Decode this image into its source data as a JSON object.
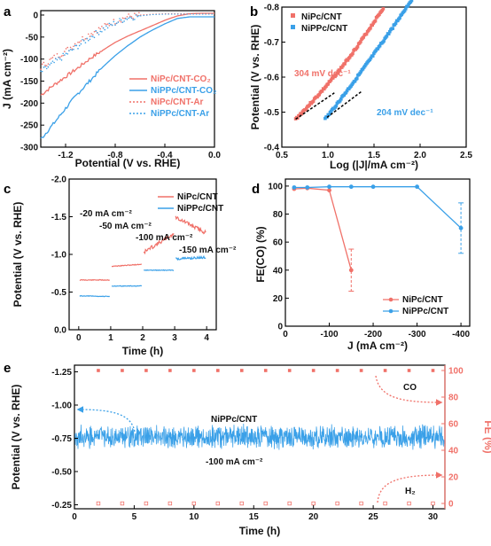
{
  "colors": {
    "red": "#f07169",
    "blue": "#3aa0e8",
    "dark": "#000000"
  },
  "panels": [
    {
      "id": "a",
      "type": "line",
      "label": "a",
      "xlabel": "Potential  (V vs. RHE)",
      "ylabel": "J (mA cm⁻²)",
      "xlim": [
        -1.4,
        0.0
      ],
      "ylim": [
        -300,
        10
      ],
      "xticks": [
        -1.2,
        -0.8,
        -0.4,
        0.0
      ],
      "xtick_labels": [
        "-1.2",
        "-0.8",
        "-0.4",
        "0.0"
      ],
      "yticks": [
        0,
        -50,
        -100,
        -150,
        -200,
        -250,
        -300
      ],
      "ytick_labels": [
        "0",
        "-50",
        "-100",
        "-150",
        "-200",
        "-250",
        "-300"
      ],
      "series": [
        {
          "name": "NiPc/CNT-CO₂",
          "style": "solid",
          "color": "red",
          "x": [
            -1.4,
            -1.3,
            -1.2,
            -1.1,
            -1.0,
            -0.9,
            -0.8,
            -0.7,
            -0.6,
            -0.5,
            -0.4,
            -0.3,
            -0.2,
            -0.1,
            0.0
          ],
          "y": [
            -182,
            -160,
            -140,
            -120,
            -98,
            -80,
            -62,
            -48,
            -36,
            -24,
            -12,
            -2,
            3,
            4,
            4
          ]
        },
        {
          "name": "NiPPc/CNT-CO₂",
          "style": "solid",
          "color": "blue",
          "x": [
            -1.4,
            -1.3,
            -1.2,
            -1.1,
            -1.0,
            -0.9,
            -0.8,
            -0.7,
            -0.6,
            -0.5,
            -0.4,
            -0.3,
            -0.2,
            -0.1,
            0.0
          ],
          "y": [
            -282,
            -248,
            -212,
            -178,
            -148,
            -118,
            -92,
            -70,
            -50,
            -34,
            -20,
            -8,
            -4,
            -4,
            -4
          ]
        },
        {
          "name": "NiPc/CNT-Ar",
          "style": "dotted",
          "color": "red",
          "x": [
            -1.4,
            -1.3,
            -1.2,
            -1.1,
            -1.0,
            -0.9,
            -0.8,
            -0.7,
            -0.6,
            -0.5,
            -0.4,
            -0.3,
            -0.2,
            -0.1,
            0.0
          ],
          "y": [
            -118,
            -98,
            -82,
            -60,
            -42,
            -28,
            -14,
            -4,
            0,
            2,
            3,
            3,
            3,
            3,
            3
          ]
        },
        {
          "name": "NiPPc/CNT-Ar",
          "style": "dotted",
          "color": "blue",
          "x": [
            -1.4,
            -1.3,
            -1.2,
            -1.1,
            -1.0,
            -0.9,
            -0.8,
            -0.7,
            -0.6,
            -0.5,
            -0.4,
            -0.3,
            -0.2,
            -0.1,
            0.0
          ],
          "y": [
            -130,
            -110,
            -90,
            -70,
            -50,
            -32,
            -18,
            -6,
            -2,
            1,
            2,
            2,
            2,
            2,
            2
          ]
        }
      ]
    },
    {
      "id": "b",
      "type": "scatter",
      "label": "b",
      "xlabel": "Log (|J|/mA cm⁻²)",
      "ylabel": "Potential (V vs. RHE)",
      "xlim": [
        0.5,
        2.5
      ],
      "ylim": [
        -0.4,
        -0.8
      ],
      "xticks": [
        0.5,
        1.0,
        1.5,
        2.0,
        2.5
      ],
      "xtick_labels": [
        "0.5",
        "1.0",
        "1.5",
        "2.0",
        "2.5"
      ],
      "yticks": [
        -0.4,
        -0.5,
        -0.6,
        -0.7,
        -0.8
      ],
      "ytick_labels": [
        "-0.4",
        "-0.5",
        "-0.6",
        "-0.7",
        "-0.8"
      ],
      "series": [
        {
          "name": "NiPc/CNT",
          "color": "red",
          "x_start": 0.65,
          "x_end": 1.6,
          "y_start": -0.48,
          "y_end": -0.8
        },
        {
          "name": "NiPPc/CNT",
          "color": "blue",
          "x_start": 0.97,
          "x_end": 1.93,
          "y_start": -0.48,
          "y_end": -0.8
        }
      ],
      "fits": [
        {
          "x": [
            0.65,
            1.07
          ],
          "y": [
            -0.48,
            -0.555
          ]
        },
        {
          "x": [
            0.99,
            1.37
          ],
          "y": [
            -0.485,
            -0.56
          ]
        }
      ],
      "annotations": [
        {
          "text": "304 mV dec⁻¹",
          "color": "red"
        },
        {
          "text": "204 mV dec⁻¹",
          "color": "blue"
        }
      ]
    },
    {
      "id": "c",
      "type": "line",
      "label": "c",
      "xlabel": "Time  (h)",
      "ylabel": "Potential (V vs. RHE)",
      "xlim": [
        -0.3,
        4.3
      ],
      "ylim": [
        0.0,
        -2.0
      ],
      "xticks": [
        0,
        1,
        2,
        3,
        4
      ],
      "xtick_labels": [
        "0",
        "1",
        "2",
        "3",
        "4"
      ],
      "yticks": [
        0.0,
        -0.5,
        -1.0,
        -1.5,
        -2.0
      ],
      "ytick_labels": [
        "0.0",
        "-0.5",
        "-1.0",
        "-1.5",
        "-2.0"
      ],
      "series": [
        {
          "name": "NiPc/CNT",
          "color": "red",
          "segments": [
            {
              "t": [
                0,
                1
              ],
              "v": [
                -0.66,
                -0.66
              ]
            },
            {
              "t": [
                1,
                2
              ],
              "v": [
                -0.84,
                -0.87
              ]
            },
            {
              "t": [
                2,
                3
              ],
              "v": [
                -1.02,
                -1.28
              ]
            },
            {
              "t": [
                3,
                4
              ],
              "v": [
                -1.5,
                -1.28
              ]
            }
          ]
        },
        {
          "name": "NiPPc/CNT",
          "color": "blue",
          "segments": [
            {
              "t": [
                0,
                1
              ],
              "v": [
                -0.45,
                -0.44
              ]
            },
            {
              "t": [
                1,
                2
              ],
              "v": [
                -0.58,
                -0.58
              ]
            },
            {
              "t": [
                2,
                3
              ],
              "v": [
                -0.79,
                -0.79
              ]
            },
            {
              "t": [
                3,
                4
              ],
              "v": [
                -0.94,
                -0.96
              ]
            }
          ]
        }
      ],
      "annotations": [
        "-20 mA cm⁻²",
        "-50 mA cm⁻²",
        "-100 mA cm⁻²",
        "-150 mA cm⁻²"
      ]
    },
    {
      "id": "d",
      "type": "line",
      "label": "d",
      "xlabel": "J (mA cm⁻²)",
      "ylabel": "FE(CO)  (%)",
      "xlim": [
        0,
        -420
      ],
      "ylim": [
        0,
        105
      ],
      "xticks": [
        0,
        -100,
        -200,
        -300,
        -400
      ],
      "xtick_labels": [
        "0",
        "-100",
        "-200",
        "-300",
        "-400"
      ],
      "yticks": [
        0,
        20,
        40,
        60,
        80,
        100
      ],
      "ytick_labels": [
        "0",
        "20",
        "40",
        "60",
        "80",
        "100"
      ],
      "series": [
        {
          "name": "NiPc/CNT",
          "color": "red",
          "x": [
            -20,
            -50,
            -100,
            -150
          ],
          "y": [
            98,
            98.5,
            97,
            40
          ],
          "err": [
            1,
            1,
            2,
            15
          ]
        },
        {
          "name": "NiPPc/CNT",
          "color": "blue",
          "x": [
            -20,
            -50,
            -100,
            -150,
            -200,
            -300,
            -400
          ],
          "y": [
            99,
            99,
            99.5,
            99.5,
            99.5,
            99.5,
            70
          ],
          "err": [
            0.5,
            0.5,
            0.5,
            0.5,
            0.5,
            0.5,
            18
          ]
        }
      ]
    },
    {
      "id": "e",
      "type": "line",
      "label": "e",
      "xlabel": "Time  (h)",
      "ylabel": "Potential (V vs. RHE)",
      "y2label": "FE (%)",
      "xlim": [
        0,
        31
      ],
      "ylim": [
        -0.22,
        -1.3
      ],
      "y2lim": [
        -4,
        104
      ],
      "xticks": [
        0,
        5,
        10,
        15,
        20,
        25,
        30
      ],
      "xtick_labels": [
        "0",
        "5",
        "10",
        "15",
        "20",
        "25",
        "30"
      ],
      "yticks": [
        -0.25,
        -0.5,
        -0.75,
        -1.0,
        -1.25
      ],
      "ytick_labels": [
        "-0.25",
        "-0.50",
        "-0.75",
        "-1.00",
        "-1.25"
      ],
      "y2ticks": [
        0,
        20,
        40,
        60,
        80,
        100
      ],
      "y2tick_labels": [
        "0",
        "20",
        "40",
        "60",
        "80",
        "100"
      ],
      "potential_mean": -0.76,
      "co_fe": 100,
      "h2_fe": 0,
      "fe_times": [
        2,
        4,
        6,
        8,
        10,
        12,
        14,
        16,
        18,
        20,
        22,
        24,
        26,
        28,
        30
      ],
      "annotations": [
        "NiPPc/CNT",
        "-100 mA cm⁻²",
        "CO",
        "H₂"
      ]
    }
  ]
}
